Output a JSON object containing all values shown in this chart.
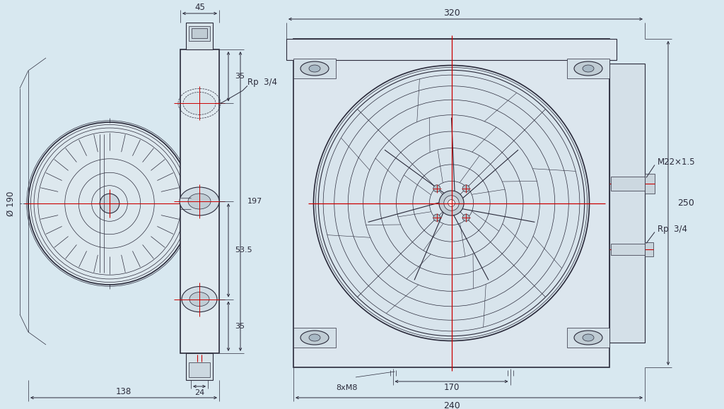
{
  "bg_color": "#d8e8f0",
  "line_color": "#2a2a3a",
  "red_color": "#cc0000",
  "fig_w": 10.24,
  "fig_h": 5.79,
  "dpi": 100,
  "dims": {
    "top_45": "45",
    "left_190": "Ø 190",
    "left_197": "197",
    "left_35_top": "35",
    "left_535": "53.5",
    "left_35_bot": "35",
    "left_138": "138",
    "left_24": "24",
    "top_320": "320",
    "right_250": "250",
    "right_240": "240",
    "right_170": "170",
    "right_8xM8": "8xM8",
    "label_Rp34_left": "Rp  3/4",
    "label_M22": "M22×1.5",
    "label_Rp34_right": "Rp  3/4"
  }
}
